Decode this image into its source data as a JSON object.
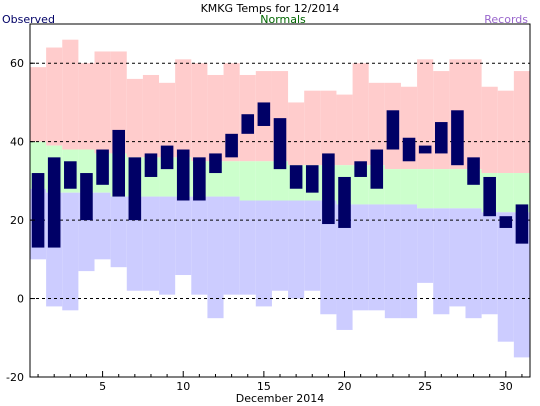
{
  "chart_data": {
    "type": "bar",
    "title": "KMKG Temps for 12/2014",
    "xlabel": "December 2014",
    "ylabel": "",
    "legend": [
      "Observed",
      "Normals",
      "Records"
    ],
    "legend_placement": "top",
    "ylim": [
      -20,
      70
    ],
    "xlim": [
      0.5,
      31.5
    ],
    "yticks": [
      -20,
      0,
      20,
      40,
      60
    ],
    "ytick_labels": [
      "-20",
      "0",
      "20",
      "40",
      "60"
    ],
    "xticks": [
      5,
      10,
      15,
      20,
      25,
      30
    ],
    "xtick_labels": [
      "5",
      "10",
      "15",
      "20",
      "25",
      "30"
    ],
    "grid": "dashed horizontal lines at y-ticks",
    "days": [
      1,
      2,
      3,
      4,
      5,
      6,
      7,
      8,
      9,
      10,
      11,
      12,
      13,
      14,
      15,
      16,
      17,
      18,
      19,
      20,
      21,
      22,
      23,
      24,
      25,
      26,
      27,
      28,
      29,
      30,
      31
    ],
    "series": [
      {
        "name": "Records",
        "color": "#ffcccc",
        "role": "record high fill",
        "high": [
          59,
          64,
          66,
          60,
          63,
          63,
          56,
          57,
          55,
          61,
          60,
          57,
          60,
          57,
          58,
          58,
          50,
          53,
          53,
          52,
          60,
          55,
          55,
          54,
          61,
          58,
          61,
          61,
          54,
          53,
          58
        ]
      },
      {
        "name": "Normals",
        "color": "#ccffcc",
        "role": "normal range fill",
        "high": [
          40,
          39,
          38,
          38,
          37,
          37,
          36,
          36,
          36,
          36,
          35,
          35,
          35,
          35,
          35,
          35,
          34,
          34,
          34,
          34,
          34,
          34,
          33,
          33,
          33,
          33,
          33,
          33,
          32,
          32,
          32
        ],
        "low": [
          28,
          27,
          27,
          27,
          27,
          26,
          26,
          26,
          26,
          26,
          26,
          26,
          26,
          25,
          25,
          25,
          25,
          25,
          25,
          24,
          24,
          24,
          24,
          24,
          23,
          23,
          23,
          23,
          22,
          22,
          22
        ]
      },
      {
        "name": "Records",
        "color": "#ccccff",
        "role": "record low fill",
        "low": [
          10,
          -2,
          -3,
          7,
          10,
          8,
          2,
          2,
          1,
          6,
          1,
          -5,
          1,
          1,
          -2,
          2,
          0,
          2,
          -4,
          -8,
          -3,
          -3,
          -5,
          -5,
          4,
          -4,
          -2,
          -5,
          -4,
          -11,
          -15
        ]
      },
      {
        "name": "Observed",
        "color": "#000066",
        "role": "observed high/low bars",
        "high": [
          32,
          36,
          35,
          32,
          38,
          43,
          36,
          37,
          39,
          38,
          36,
          37,
          42,
          47,
          50,
          46,
          34,
          34,
          37,
          31,
          35,
          38,
          48,
          41,
          39,
          45,
          48,
          36,
          31,
          21,
          24
        ],
        "low": [
          13,
          13,
          28,
          20,
          29,
          26,
          20,
          31,
          33,
          25,
          25,
          32,
          36,
          42,
          44,
          33,
          28,
          27,
          19,
          18,
          31,
          28,
          38,
          35,
          37,
          37,
          34,
          29,
          21,
          18,
          14
        ]
      }
    ]
  },
  "colors": {
    "observed": "#000066",
    "normals": "#ccffcc",
    "records_high": "#ffcccc",
    "records_low": "#ccccff",
    "legend_observed": "#000066",
    "legend_normals": "#006600",
    "legend_records": "#9966cc"
  }
}
